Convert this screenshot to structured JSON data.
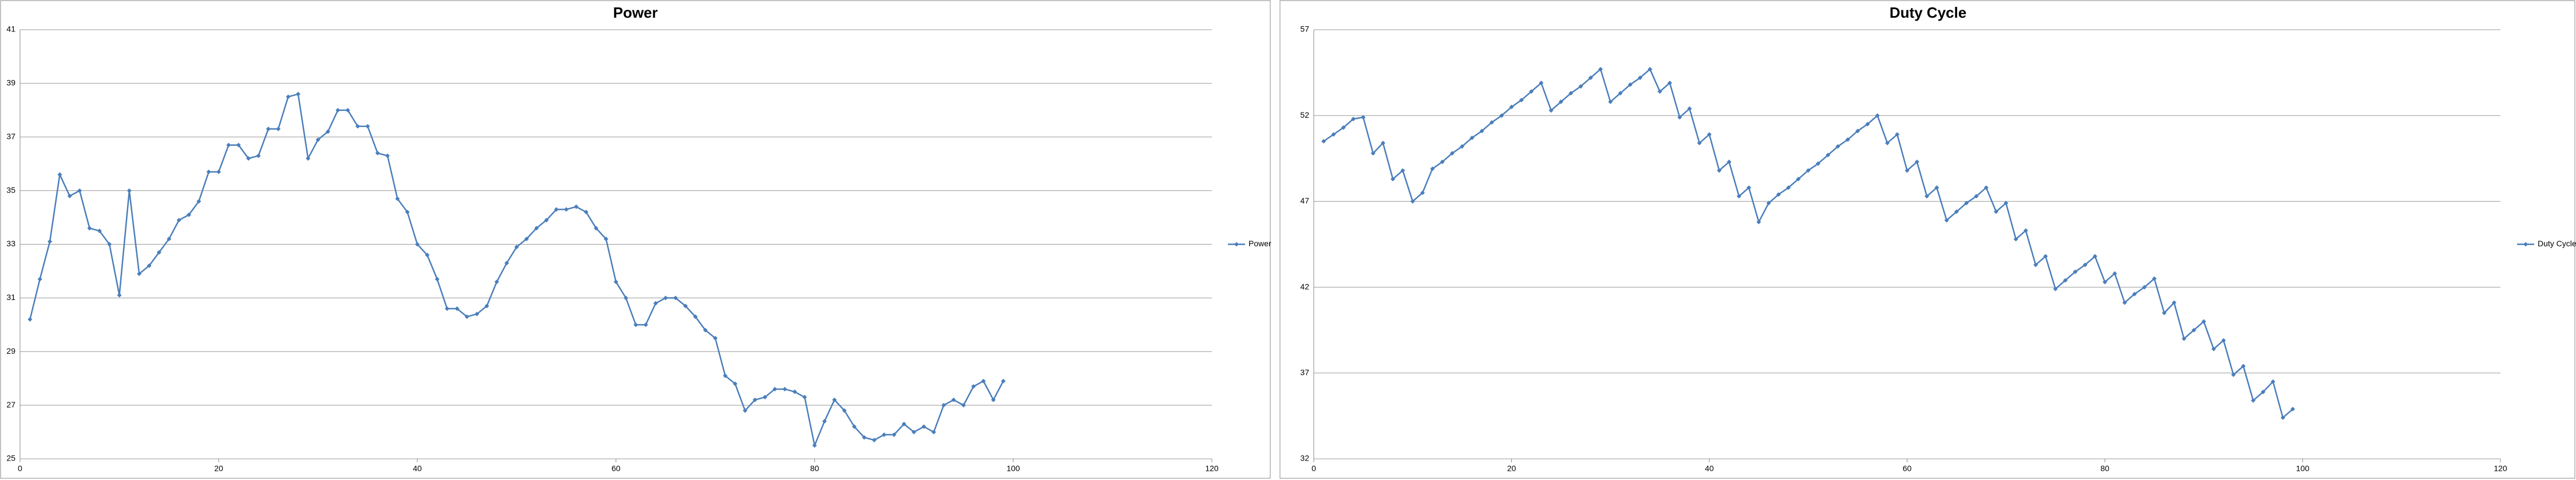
{
  "chart_data": [
    {
      "type": "line",
      "title": "Power",
      "x": [
        1,
        2,
        3,
        4,
        5,
        6,
        7,
        8,
        9,
        10,
        11,
        12,
        13,
        14,
        15,
        16,
        17,
        18,
        19,
        20,
        21,
        22,
        23,
        24,
        25,
        26,
        27,
        28,
        29,
        30,
        31,
        32,
        33,
        34,
        35,
        36,
        37,
        38,
        39,
        40,
        41,
        42,
        43,
        44,
        45,
        46,
        47,
        48,
        49,
        50,
        51,
        52,
        53,
        54,
        55,
        56,
        57,
        58,
        59,
        60,
        61,
        62,
        63,
        64,
        65,
        66,
        67,
        68,
        69,
        70,
        71,
        72,
        73,
        74,
        75,
        76,
        77,
        78,
        79,
        80,
        81,
        82,
        83,
        84,
        85,
        86,
        87,
        88,
        89,
        90,
        91,
        92,
        93,
        94,
        95,
        96,
        97,
        98,
        99
      ],
      "series": [
        {
          "name": "Power",
          "color": "#4a7ebb",
          "values": [
            30.2,
            31.7,
            33.1,
            35.6,
            34.8,
            35.0,
            33.6,
            33.5,
            33.0,
            31.1,
            35.0,
            31.9,
            32.2,
            32.7,
            33.2,
            33.9,
            34.1,
            34.6,
            35.7,
            35.7,
            36.7,
            36.7,
            36.2,
            36.3,
            37.3,
            37.3,
            38.5,
            38.6,
            36.2,
            36.9,
            37.2,
            38.0,
            38.0,
            37.4,
            37.4,
            36.4,
            36.3,
            34.7,
            34.2,
            33.0,
            32.6,
            31.7,
            30.6,
            30.6,
            30.3,
            30.4,
            30.7,
            31.6,
            32.3,
            32.9,
            33.2,
            33.6,
            33.9,
            34.3,
            34.3,
            34.4,
            34.2,
            33.6,
            33.2,
            31.6,
            31.0,
            30.0,
            30.0,
            30.8,
            31.0,
            31.0,
            30.7,
            30.3,
            29.8,
            29.5,
            28.1,
            27.8,
            26.8,
            27.2,
            27.3,
            27.6,
            27.6,
            27.5,
            27.3,
            25.5,
            26.4,
            27.2,
            26.8,
            26.2,
            25.8,
            25.7,
            25.9,
            25.9,
            26.3,
            26.0,
            26.2,
            26.0,
            27.0,
            27.2,
            27.0,
            27.7,
            27.9,
            27.2,
            27.9
          ]
        }
      ],
      "xlim": [
        0,
        120
      ],
      "xticks": [
        0,
        20,
        40,
        60,
        80,
        100,
        120
      ],
      "ylim": [
        25,
        41
      ],
      "yticks": [
        25,
        27,
        29,
        31,
        33,
        35,
        37,
        39,
        41
      ],
      "grid": true,
      "legend": "right"
    },
    {
      "type": "line",
      "title": "Duty Cycle",
      "x": [
        1,
        2,
        3,
        4,
        5,
        6,
        7,
        8,
        9,
        10,
        11,
        12,
        13,
        14,
        15,
        16,
        17,
        18,
        19,
        20,
        21,
        22,
        23,
        24,
        25,
        26,
        27,
        28,
        29,
        30,
        31,
        32,
        33,
        34,
        35,
        36,
        37,
        38,
        39,
        40,
        41,
        42,
        43,
        44,
        45,
        46,
        47,
        48,
        49,
        50,
        51,
        52,
        53,
        54,
        55,
        56,
        57,
        58,
        59,
        60,
        61,
        62,
        63,
        64,
        65,
        66,
        67,
        68,
        69,
        70,
        71,
        72,
        73,
        74,
        75,
        76,
        77,
        78,
        79,
        80,
        81,
        82,
        83,
        84,
        85,
        86,
        87,
        88,
        89,
        90,
        91,
        92,
        93,
        94,
        95,
        96,
        97,
        98,
        99
      ],
      "series": [
        {
          "name": "Duty Cycle",
          "color": "#4a7ebb",
          "values": [
            50.5,
            50.9,
            51.3,
            51.8,
            51.9,
            49.8,
            50.4,
            48.3,
            48.8,
            47.0,
            47.5,
            48.9,
            49.3,
            49.8,
            50.2,
            50.7,
            51.1,
            51.6,
            52.0,
            52.5,
            52.9,
            53.4,
            53.9,
            52.3,
            52.8,
            53.3,
            53.7,
            54.2,
            54.7,
            52.8,
            53.3,
            53.8,
            54.2,
            54.7,
            53.4,
            53.9,
            51.9,
            52.4,
            50.4,
            50.9,
            48.8,
            49.3,
            47.3,
            47.8,
            45.8,
            46.9,
            47.4,
            47.8,
            48.3,
            48.8,
            49.2,
            49.7,
            50.2,
            50.6,
            51.1,
            51.5,
            52.0,
            50.4,
            50.9,
            48.8,
            49.3,
            47.3,
            47.8,
            45.9,
            46.4,
            46.9,
            47.3,
            47.8,
            46.4,
            46.9,
            44.8,
            45.3,
            43.3,
            43.8,
            41.9,
            42.4,
            42.9,
            43.3,
            43.8,
            42.3,
            42.8,
            41.1,
            41.6,
            42.0,
            42.5,
            40.5,
            41.1,
            39.0,
            39.5,
            40.0,
            38.4,
            38.9,
            36.9,
            37.4,
            35.4,
            35.9,
            36.5,
            34.4,
            34.9
          ]
        }
      ],
      "xlim": [
        0,
        120
      ],
      "xticks": [
        0,
        20,
        40,
        60,
        80,
        100,
        120
      ],
      "ylim": [
        32,
        57
      ],
      "yticks": [
        32,
        37,
        42,
        47,
        52,
        57
      ],
      "grid": true,
      "legend": "right"
    }
  ]
}
